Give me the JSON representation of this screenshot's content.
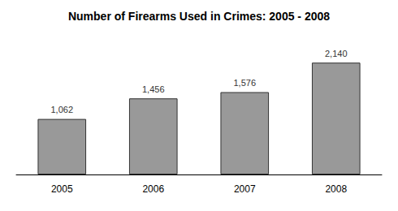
{
  "chart_data": {
    "type": "bar",
    "title": "Number of Firearms Used in Crimes: 2005 - 2008",
    "categories": [
      "2005",
      "2006",
      "2007",
      "2008"
    ],
    "values": [
      1062,
      1456,
      1576,
      2140
    ],
    "value_labels": [
      "1,062",
      "1,456",
      "1,576",
      "2,140"
    ],
    "color": "#999999",
    "ylim": [
      0,
      2500
    ],
    "grid": false,
    "data_labels": true,
    "tick_labels": "x"
  }
}
